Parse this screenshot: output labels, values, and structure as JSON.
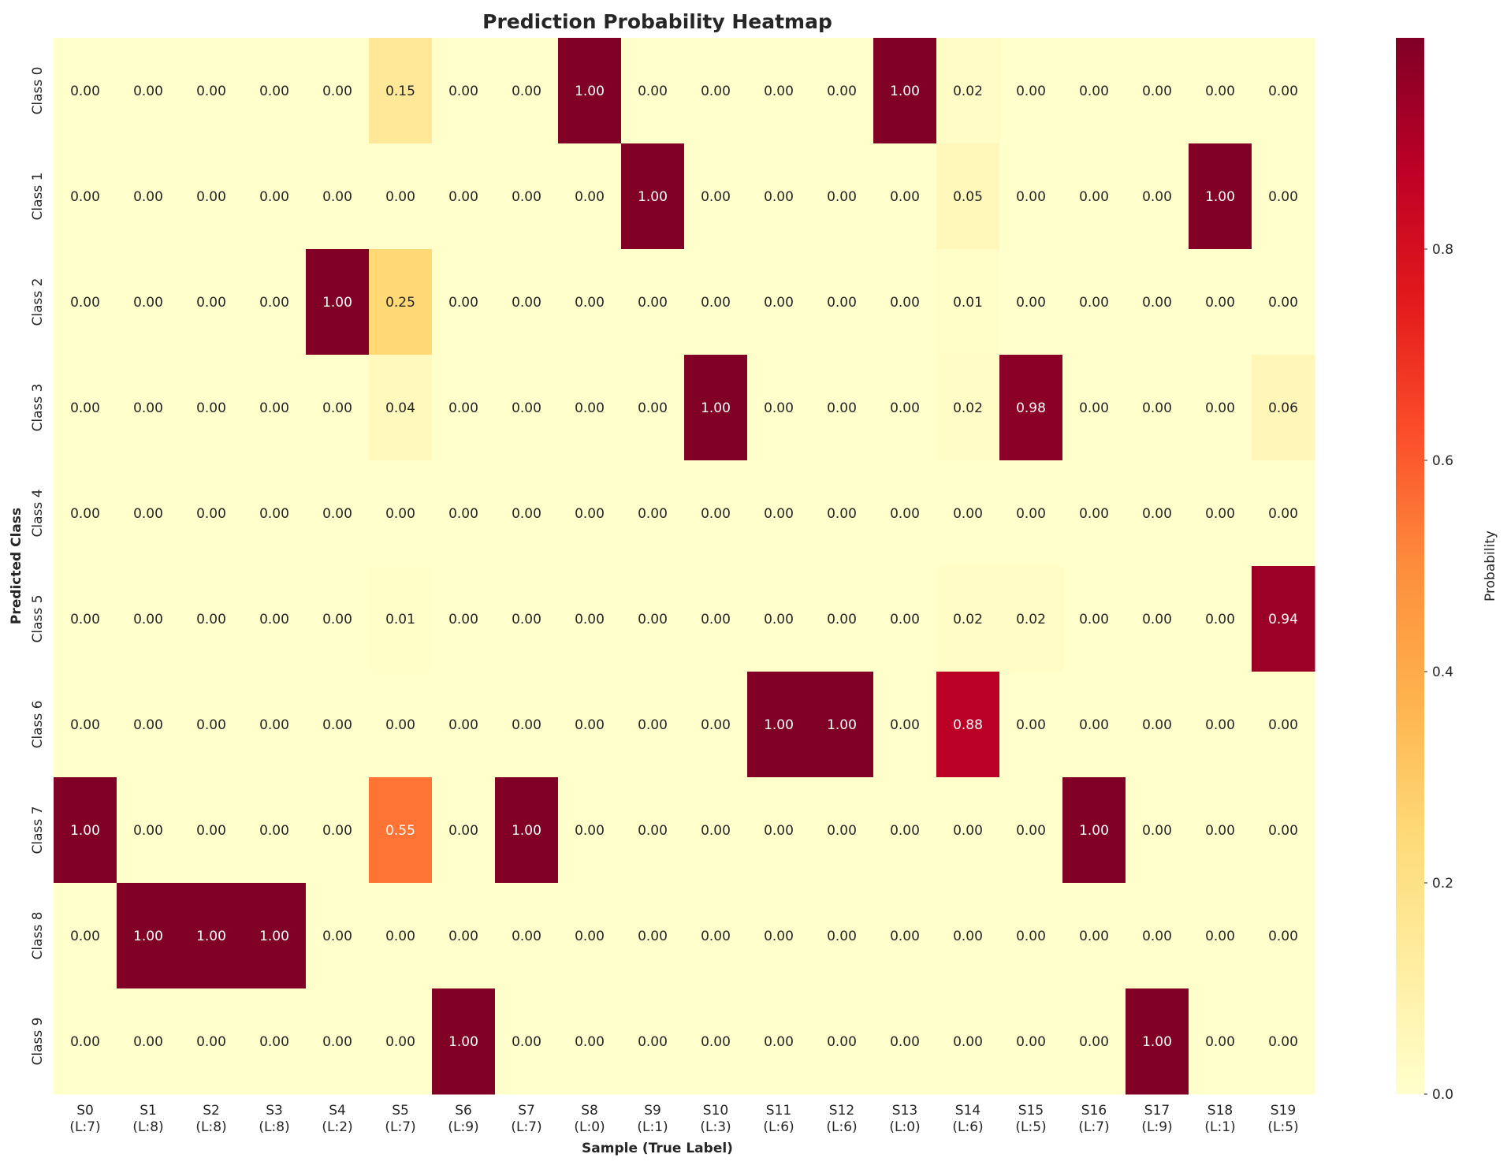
{
  "chart_data": {
    "type": "heatmap",
    "title": "Prediction Probability Heatmap",
    "xlabel": "Sample (True Label)",
    "ylabel": "Predicted Class",
    "rows": [
      "Class 0",
      "Class 1",
      "Class 2",
      "Class 3",
      "Class 4",
      "Class 5",
      "Class 6",
      "Class 7",
      "Class 8",
      "Class 9"
    ],
    "columns": [
      {
        "sample": "S0",
        "label": "(L:7)"
      },
      {
        "sample": "S1",
        "label": "(L:8)"
      },
      {
        "sample": "S2",
        "label": "(L:8)"
      },
      {
        "sample": "S3",
        "label": "(L:8)"
      },
      {
        "sample": "S4",
        "label": "(L:2)"
      },
      {
        "sample": "S5",
        "label": "(L:7)"
      },
      {
        "sample": "S6",
        "label": "(L:9)"
      },
      {
        "sample": "S7",
        "label": "(L:7)"
      },
      {
        "sample": "S8",
        "label": "(L:0)"
      },
      {
        "sample": "S9",
        "label": "(L:1)"
      },
      {
        "sample": "S10",
        "label": "(L:3)"
      },
      {
        "sample": "S11",
        "label": "(L:6)"
      },
      {
        "sample": "S12",
        "label": "(L:6)"
      },
      {
        "sample": "S13",
        "label": "(L:0)"
      },
      {
        "sample": "S14",
        "label": "(L:6)"
      },
      {
        "sample": "S15",
        "label": "(L:5)"
      },
      {
        "sample": "S16",
        "label": "(L:7)"
      },
      {
        "sample": "S17",
        "label": "(L:9)"
      },
      {
        "sample": "S18",
        "label": "(L:1)"
      },
      {
        "sample": "S19",
        "label": "(L:5)"
      }
    ],
    "values": [
      [
        0.0,
        0.0,
        0.0,
        0.0,
        0.0,
        0.15,
        0.0,
        0.0,
        1.0,
        0.0,
        0.0,
        0.0,
        0.0,
        1.0,
        0.02,
        0.0,
        0.0,
        0.0,
        0.0,
        0.0
      ],
      [
        0.0,
        0.0,
        0.0,
        0.0,
        0.0,
        0.0,
        0.0,
        0.0,
        0.0,
        1.0,
        0.0,
        0.0,
        0.0,
        0.0,
        0.05,
        0.0,
        0.0,
        0.0,
        1.0,
        0.0
      ],
      [
        0.0,
        0.0,
        0.0,
        0.0,
        1.0,
        0.25,
        0.0,
        0.0,
        0.0,
        0.0,
        0.0,
        0.0,
        0.0,
        0.0,
        0.01,
        0.0,
        0.0,
        0.0,
        0.0,
        0.0
      ],
      [
        0.0,
        0.0,
        0.0,
        0.0,
        0.0,
        0.04,
        0.0,
        0.0,
        0.0,
        0.0,
        1.0,
        0.0,
        0.0,
        0.0,
        0.02,
        0.98,
        0.0,
        0.0,
        0.0,
        0.06
      ],
      [
        0.0,
        0.0,
        0.0,
        0.0,
        0.0,
        0.0,
        0.0,
        0.0,
        0.0,
        0.0,
        0.0,
        0.0,
        0.0,
        0.0,
        0.0,
        0.0,
        0.0,
        0.0,
        0.0,
        0.0
      ],
      [
        0.0,
        0.0,
        0.0,
        0.0,
        0.0,
        0.01,
        0.0,
        0.0,
        0.0,
        0.0,
        0.0,
        0.0,
        0.0,
        0.0,
        0.02,
        0.02,
        0.0,
        0.0,
        0.0,
        0.94
      ],
      [
        0.0,
        0.0,
        0.0,
        0.0,
        0.0,
        0.0,
        0.0,
        0.0,
        0.0,
        0.0,
        0.0,
        1.0,
        1.0,
        0.0,
        0.88,
        0.0,
        0.0,
        0.0,
        0.0,
        0.0
      ],
      [
        1.0,
        0.0,
        0.0,
        0.0,
        0.0,
        0.55,
        0.0,
        1.0,
        0.0,
        0.0,
        0.0,
        0.0,
        0.0,
        0.0,
        0.0,
        0.0,
        1.0,
        0.0,
        0.0,
        0.0
      ],
      [
        0.0,
        1.0,
        1.0,
        1.0,
        0.0,
        0.0,
        0.0,
        0.0,
        0.0,
        0.0,
        0.0,
        0.0,
        0.0,
        0.0,
        0.0,
        0.0,
        0.0,
        0.0,
        0.0,
        0.0
      ],
      [
        0.0,
        0.0,
        0.0,
        0.0,
        0.0,
        0.0,
        1.0,
        0.0,
        0.0,
        0.0,
        0.0,
        0.0,
        0.0,
        0.0,
        0.0,
        0.0,
        0.0,
        1.0,
        0.0,
        0.0
      ]
    ],
    "value_range": [
      0,
      1
    ],
    "colormap": "YlOrRd",
    "colormap_stops": [
      "#ffffcc",
      "#ffeda0",
      "#fed976",
      "#feb24c",
      "#fd8d3c",
      "#fc4e2a",
      "#e31a1c",
      "#bd0026",
      "#800026"
    ],
    "colorbar": {
      "label": "Probability",
      "ticks": [
        {
          "value": 0.0,
          "label": "0.0"
        },
        {
          "value": 0.2,
          "label": "0.2"
        },
        {
          "value": 0.4,
          "label": "0.4"
        },
        {
          "value": 0.6,
          "label": "0.6"
        },
        {
          "value": 0.8,
          "label": "0.8"
        }
      ]
    },
    "annotation_format": "2 decimals",
    "grid": false,
    "text_colors": {
      "dark": "#262626",
      "light": "#ffffff"
    }
  }
}
